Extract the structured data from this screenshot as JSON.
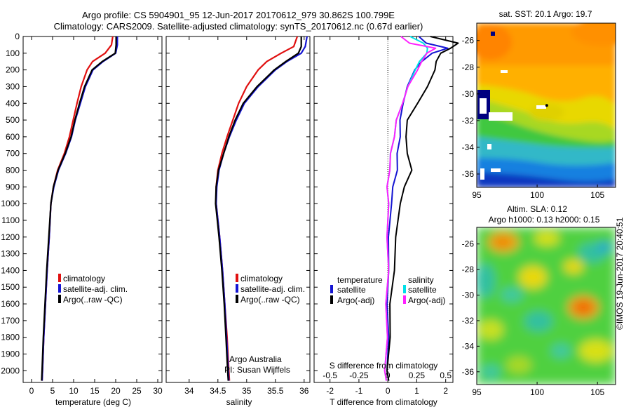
{
  "header": {
    "line1": "Argo profile: CS 5904901_95 12-Jun-2017 20170612_979 30.862S 100.799E",
    "line2": "Climatology: CARS2009. Satellite-adjusted climatology: synTS_20170612.nc (0.67d earlier)"
  },
  "colors": {
    "climatology": "#e01010",
    "satellite": "#1414d2",
    "argo": "#000000",
    "salinity_satellite": "#00e0e8",
    "salinity_argo": "#ff20ff"
  },
  "depth_ticks": [
    "0",
    "100",
    "200",
    "300",
    "400",
    "500",
    "600",
    "700",
    "800",
    "900",
    "1000",
    "1100",
    "1200",
    "1300",
    "1400",
    "1500",
    "1600",
    "1700",
    "1800",
    "1900",
    "2000"
  ],
  "chart_data": [
    {
      "type": "line",
      "id": "temperature",
      "xlabel": "temperature (deg C)",
      "xlim": [
        -2,
        31
      ],
      "ylim": [
        2070,
        0
      ],
      "x_ticks": [
        "0",
        "5",
        "10",
        "15",
        "20",
        "25",
        "30"
      ],
      "legend": [
        "climatology",
        "satellite-adj. clim.",
        "Argo(..raw -QC)"
      ],
      "depth": [
        0,
        50,
        100,
        150,
        200,
        300,
        400,
        500,
        600,
        700,
        800,
        900,
        1000,
        1200,
        1400,
        1600,
        1800,
        2000,
        2060
      ],
      "series": [
        {
          "name": "climatology",
          "values": [
            19.3,
            19.0,
            17.5,
            14.5,
            13.2,
            11.8,
            10.8,
            9.9,
            9.0,
            7.8,
            6.2,
            5.2,
            4.6,
            4.2,
            3.7,
            3.3,
            2.9,
            2.6,
            2.5
          ]
        },
        {
          "name": "satellite-adj. clim.",
          "values": [
            20.4,
            20.4,
            20.0,
            17.0,
            14.6,
            12.8,
            11.6,
            10.4,
            9.5,
            8.1,
            6.4,
            5.3,
            4.6,
            4.2,
            3.7,
            3.3,
            2.9,
            2.6,
            2.5
          ]
        },
        {
          "name": "Argo(..raw -QC)",
          "values": [
            20.1,
            20.1,
            19.9,
            16.8,
            14.4,
            12.6,
            11.4,
            10.3,
            9.4,
            8.0,
            6.3,
            5.2,
            4.6,
            4.1,
            3.6,
            3.2,
            2.8,
            2.5,
            2.4
          ]
        }
      ]
    },
    {
      "type": "line",
      "id": "salinity",
      "xlabel": "salinity",
      "xlim": [
        33.6,
        36.1
      ],
      "ylim": [
        2070,
        0
      ],
      "x_ticks": [
        "34",
        "34.5",
        "35",
        "35.5",
        "36"
      ],
      "legend": [
        "climatology",
        "satellite-adj. clim.",
        "Argo(..raw -QC)"
      ],
      "annotation": [
        "Argo Australia",
        "PI: Susan Wijffels"
      ],
      "depth": [
        0,
        60,
        100,
        150,
        200,
        300,
        400,
        500,
        600,
        700,
        800,
        900,
        1000,
        1100,
        1200,
        1400,
        1600,
        1800,
        2000,
        2060
      ],
      "series": [
        {
          "name": "climatology",
          "values": [
            35.88,
            35.82,
            35.6,
            35.35,
            35.2,
            35.0,
            34.86,
            34.76,
            34.66,
            34.57,
            34.5,
            34.47,
            34.47,
            34.5,
            34.53,
            34.58,
            34.62,
            34.66,
            34.69,
            34.7
          ]
        },
        {
          "name": "satellite-adj. clim.",
          "values": [
            36.05,
            36.02,
            35.95,
            35.7,
            35.5,
            35.2,
            34.96,
            34.82,
            34.7,
            34.6,
            34.52,
            34.48,
            34.47,
            34.5,
            34.53,
            34.58,
            34.62,
            34.65,
            34.68,
            34.69
          ]
        },
        {
          "name": "Argo(..raw -QC)",
          "values": [
            35.95,
            35.95,
            35.9,
            35.68,
            35.48,
            35.18,
            34.94,
            34.8,
            34.69,
            34.6,
            34.51,
            34.47,
            34.46,
            34.49,
            34.52,
            34.57,
            34.61,
            34.64,
            34.67,
            34.68
          ]
        }
      ]
    },
    {
      "type": "line",
      "id": "difference",
      "xlabel": "T difference from climatology",
      "x2label": "S difference from climatology",
      "xlim": [
        -2.55,
        2.25
      ],
      "x2lim": [
        -0.6375,
        0.5625
      ],
      "ylim": [
        2070,
        0
      ],
      "x_ticks": [
        "-2",
        "-1",
        "0",
        "1",
        "2"
      ],
      "x2_ticks": [
        "-0.5",
        "-0.25",
        "0",
        "0.25",
        "0.5"
      ],
      "legend_temperature": {
        "title": "temperature",
        "entries": [
          "satellite",
          "Argo(-adj)"
        ]
      },
      "legend_salinity": {
        "title": "salinity",
        "entries": [
          "satellite",
          "Argo(-adj)"
        ]
      },
      "depth": [
        0,
        40,
        70,
        100,
        150,
        200,
        300,
        400,
        500,
        600,
        700,
        800,
        900,
        1000,
        1200,
        1400,
        1600,
        1800,
        2000,
        2060
      ],
      "series": [
        {
          "name": "temperature satellite",
          "values": [
            1.1,
            1.3,
            2.1,
            1.5,
            1.2,
            0.9,
            0.7,
            0.5,
            0.45,
            0.4,
            0.35,
            0.3,
            0.2,
            0.1,
            0.05,
            0.0,
            0.0,
            0.0,
            0.0,
            0.0
          ]
        },
        {
          "name": "temperature Argo(-adj)",
          "values": [
            1.5,
            2.4,
            2.2,
            1.8,
            1.7,
            1.6,
            1.4,
            1.0,
            0.7,
            0.6,
            0.7,
            0.8,
            0.6,
            0.4,
            0.3,
            0.2,
            0.1,
            0.05,
            0.0,
            0.0
          ]
        },
        {
          "name": "salinity satellite",
          "values": [
            0.2,
            0.3,
            0.35,
            0.33,
            0.28,
            0.23,
            0.18,
            0.12,
            0.08,
            0.05,
            0.03,
            0.01,
            0.0,
            0.0,
            0.0,
            0.0,
            -0.01,
            -0.01,
            -0.02,
            -0.02
          ]
        },
        {
          "name": "salinity Argo(-adj)",
          "values": [
            0.12,
            0.18,
            0.42,
            0.33,
            0.3,
            0.25,
            0.18,
            0.12,
            0.08,
            0.05,
            0.03,
            0.01,
            0.0,
            0.0,
            0.0,
            0.0,
            -0.01,
            -0.01,
            -0.02,
            -0.02
          ]
        }
      ]
    },
    {
      "type": "heatmap",
      "id": "sst-map",
      "title": "sat. SST: 20.1 Argo: 19.7",
      "xlim": [
        95,
        106.5
      ],
      "ylim": [
        -37,
        -24.7
      ],
      "x_ticks": [
        "95",
        "100",
        "105"
      ],
      "y_ticks": [
        "-26",
        "-28",
        "-30",
        "-32",
        "-34",
        "-36"
      ],
      "argo_position": {
        "lon": 100.799,
        "lat": -30.862
      }
    },
    {
      "type": "heatmap",
      "id": "sla-map",
      "title_line1": "Altim. SLA: 0.12",
      "title_line2": "Argo h1000: 0.13 h2000: 0.15",
      "xlim": [
        95,
        106.5
      ],
      "ylim": [
        -37,
        -24.7
      ],
      "x_ticks": [
        "95",
        "100",
        "105"
      ],
      "y_ticks": [
        "-26",
        "-28",
        "-30",
        "-32",
        "-34",
        "-36"
      ]
    }
  ],
  "footer": {
    "stamp": "©IMOS 19-Jun-2017 20:40:51"
  }
}
